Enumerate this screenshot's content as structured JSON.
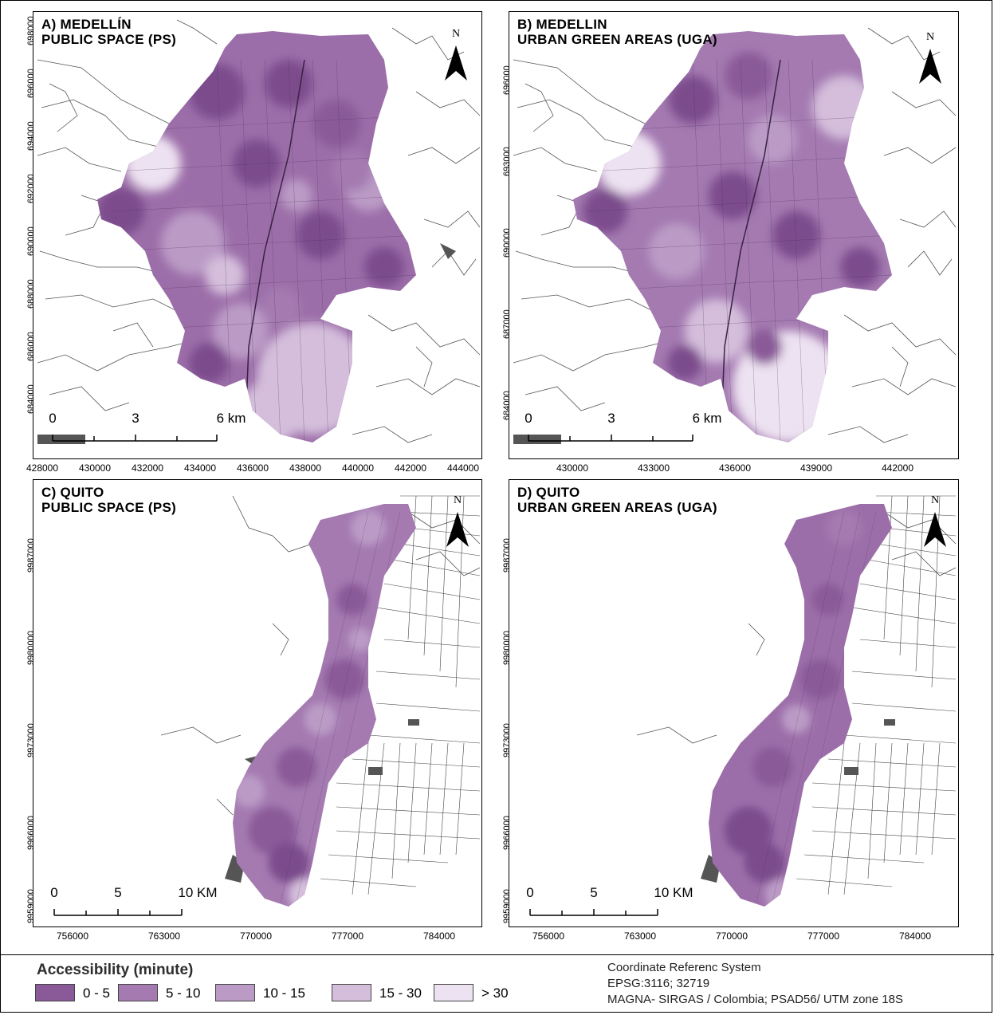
{
  "panels": [
    {
      "title_line1": "A) MEDELLÍN",
      "title_line2": "PUBLIC SPACE (PS)",
      "north": "N",
      "y_ticks": [
        "698000",
        "696000",
        "694000",
        "692000",
        "690000",
        "688000",
        "686000",
        "684000"
      ],
      "x_ticks": [
        "428000",
        "430000",
        "432000",
        "434000",
        "436000",
        "438000",
        "440000",
        "442000",
        "444000"
      ],
      "scale_labels": [
        "0",
        "3",
        "6 km"
      ]
    },
    {
      "title_line1": "B) MEDELLIN",
      "title_line2": "URBAN GREEN AREAS (UGA)",
      "north": "N",
      "y_ticks": [
        "696000",
        "693000",
        "690000",
        "687000",
        "684000"
      ],
      "x_ticks": [
        "430000",
        "433000",
        "436000",
        "439000",
        "442000"
      ],
      "scale_labels": [
        "0",
        "3",
        "6 km"
      ]
    },
    {
      "title_line1": "C) QUITO",
      "title_line2": "PUBLIC SPACE (PS)",
      "north": "N",
      "y_ticks": [
        "9987000",
        "9980000",
        "9973000",
        "9966000",
        "9959000"
      ],
      "x_ticks": [
        "756000",
        "763000",
        "770000",
        "777000",
        "784000"
      ],
      "scale_labels": [
        "0",
        "5",
        "10 KM"
      ]
    },
    {
      "title_line1": "D) QUITO",
      "title_line2": "URBAN GREEN AREAS (UGA)",
      "north": "N",
      "y_ticks": [
        "9987000",
        "9980000",
        "9973000",
        "9966000",
        "9959000"
      ],
      "x_ticks": [
        "756000",
        "763000",
        "770000",
        "777000",
        "784000"
      ],
      "scale_labels": [
        "0",
        "5",
        "10 KM"
      ]
    }
  ],
  "legend": {
    "title": "Accessibility (minute)",
    "items": [
      {
        "label": "0 - 5",
        "color": "#8a5a98"
      },
      {
        "label": "5 - 10",
        "color": "#a47ab1"
      },
      {
        "label": "10 - 15",
        "color": "#bb9bc6"
      },
      {
        "label": "15 - 30",
        "color": "#d4bedb"
      },
      {
        "label": "> 30",
        "color": "#ede2f1"
      }
    ]
  },
  "crs": {
    "line1": "Coordinate Referenc System",
    "line2": "EPSG:3116; 32719",
    "line3": "MAGNA- SIRGAS / Colombia; PSAD56/ UTM zone 18S"
  }
}
